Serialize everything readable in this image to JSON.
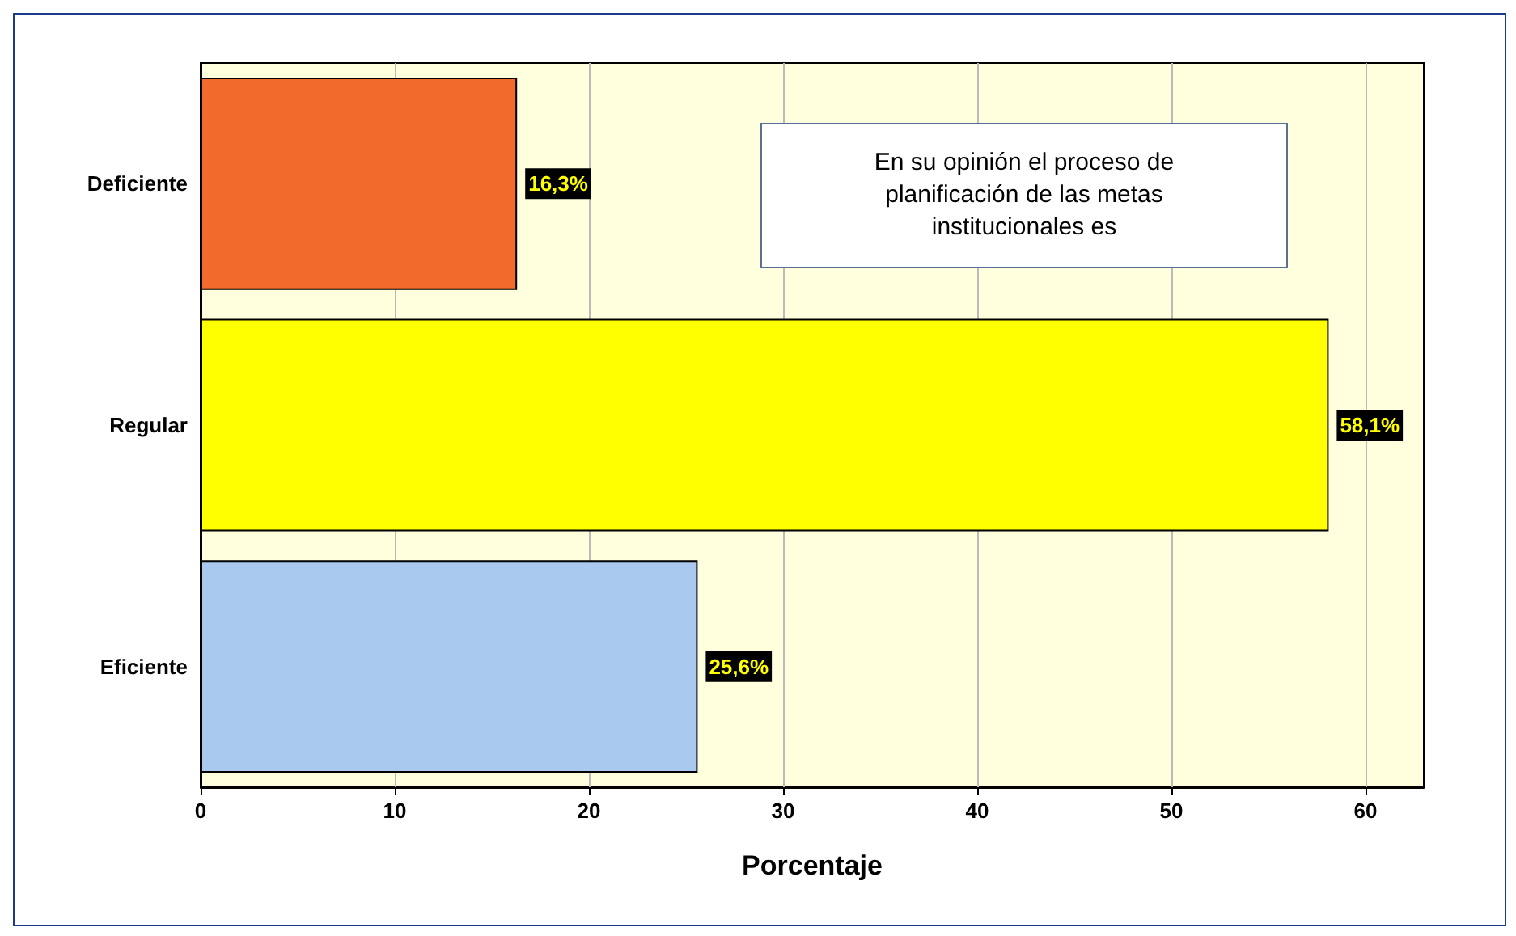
{
  "chart_data": {
    "type": "bar",
    "orientation": "horizontal",
    "xlabel": "Porcentaje",
    "categories": [
      "Deficiente",
      "Regular",
      "Eficiente"
    ],
    "values": [
      16.3,
      58.1,
      25.6
    ],
    "colors": [
      "#f26b2c",
      "#ffff00",
      "#a9c9ee"
    ],
    "value_labels": [
      "16,3%",
      "58,1%",
      "25,6%"
    ],
    "xlim": [
      0,
      63
    ],
    "xticks": [
      0,
      10,
      20,
      30,
      40,
      50,
      60
    ],
    "grid": "x",
    "annotations": [
      "En su opinión el proceso de planificación de las metas institucionales es"
    ]
  }
}
